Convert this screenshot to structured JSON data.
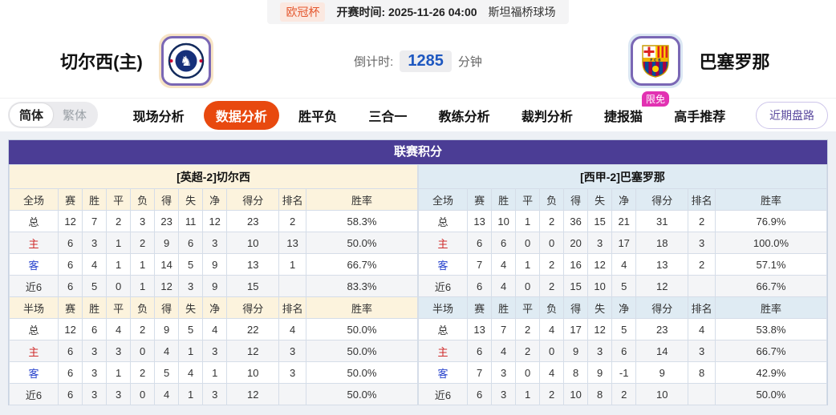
{
  "top_bar": {
    "league": "欧冠杯",
    "kickoff": "开赛时间: 2025-11-26 04:00",
    "venue": "斯坦福桥球场"
  },
  "header": {
    "home_name": "切尔西(主)",
    "away_name": "巴塞罗那",
    "countdown_label": "倒计时:",
    "countdown_value": "1285",
    "countdown_unit": "分钟"
  },
  "nav": {
    "lang": [
      {
        "name": "simplified",
        "label": "简体",
        "active": true
      },
      {
        "name": "traditional",
        "label": "繁体",
        "active": false
      }
    ],
    "tabs": [
      {
        "name": "live-analysis",
        "label": "现场分析",
        "active": false
      },
      {
        "name": "data-analysis",
        "label": "数据分析",
        "active": true
      },
      {
        "name": "win-draw-loss",
        "label": "胜平负",
        "active": false
      },
      {
        "name": "three-in-one",
        "label": "三合一",
        "active": false
      },
      {
        "name": "coach-analysis",
        "label": "教练分析",
        "active": false
      },
      {
        "name": "referee-analysis",
        "label": "裁判分析",
        "active": false
      },
      {
        "name": "jiebao-cat",
        "label": "捷报猫",
        "active": false,
        "badge": "限免"
      },
      {
        "name": "expert-picks",
        "label": "高手推荐",
        "active": false
      }
    ],
    "right_button": "近期盘路"
  },
  "table": {
    "title": "联赛积分",
    "home": {
      "header": "[英超-2]切尔西",
      "full_header": [
        "全场",
        "赛",
        "胜",
        "平",
        "负",
        "得",
        "失",
        "净",
        "得分",
        "排名",
        "胜率"
      ],
      "full_rows": [
        [
          "总",
          "12",
          "7",
          "2",
          "3",
          "23",
          "11",
          "12",
          "23",
          "2",
          "58.3%"
        ],
        [
          "主",
          "6",
          "3",
          "1",
          "2",
          "9",
          "6",
          "3",
          "10",
          "13",
          "50.0%"
        ],
        [
          "客",
          "6",
          "4",
          "1",
          "1",
          "14",
          "5",
          "9",
          "13",
          "1",
          "66.7%"
        ],
        [
          "近6",
          "6",
          "5",
          "0",
          "1",
          "12",
          "3",
          "9",
          "15",
          "",
          "83.3%"
        ]
      ],
      "half_header": [
        "半场",
        "赛",
        "胜",
        "平",
        "负",
        "得",
        "失",
        "净",
        "得分",
        "排名",
        "胜率"
      ],
      "half_rows": [
        [
          "总",
          "12",
          "6",
          "4",
          "2",
          "9",
          "5",
          "4",
          "22",
          "4",
          "50.0%"
        ],
        [
          "主",
          "6",
          "3",
          "3",
          "0",
          "4",
          "1",
          "3",
          "12",
          "3",
          "50.0%"
        ],
        [
          "客",
          "6",
          "3",
          "1",
          "2",
          "5",
          "4",
          "1",
          "10",
          "3",
          "50.0%"
        ],
        [
          "近6",
          "6",
          "3",
          "3",
          "0",
          "4",
          "1",
          "3",
          "12",
          "",
          "50.0%"
        ]
      ]
    },
    "away": {
      "header": "[西甲-2]巴塞罗那",
      "full_header": [
        "全场",
        "赛",
        "胜",
        "平",
        "负",
        "得",
        "失",
        "净",
        "得分",
        "排名",
        "胜率"
      ],
      "full_rows": [
        [
          "总",
          "13",
          "10",
          "1",
          "2",
          "36",
          "15",
          "21",
          "31",
          "2",
          "76.9%"
        ],
        [
          "主",
          "6",
          "6",
          "0",
          "0",
          "20",
          "3",
          "17",
          "18",
          "3",
          "100.0%"
        ],
        [
          "客",
          "7",
          "4",
          "1",
          "2",
          "16",
          "12",
          "4",
          "13",
          "2",
          "57.1%"
        ],
        [
          "近6",
          "6",
          "4",
          "0",
          "2",
          "15",
          "10",
          "5",
          "12",
          "",
          "66.7%"
        ]
      ],
      "half_header": [
        "半场",
        "赛",
        "胜",
        "平",
        "负",
        "得",
        "失",
        "净",
        "得分",
        "排名",
        "胜率"
      ],
      "half_rows": [
        [
          "总",
          "13",
          "7",
          "2",
          "4",
          "17",
          "12",
          "5",
          "23",
          "4",
          "53.8%"
        ],
        [
          "主",
          "6",
          "4",
          "2",
          "0",
          "9",
          "3",
          "6",
          "14",
          "3",
          "66.7%"
        ],
        [
          "客",
          "7",
          "3",
          "0",
          "4",
          "8",
          "9",
          "-1",
          "9",
          "8",
          "42.9%"
        ],
        [
          "近6",
          "6",
          "3",
          "1",
          "2",
          "10",
          "8",
          "2",
          "10",
          "",
          "50.0%"
        ]
      ]
    }
  },
  "colors": {
    "accent_orange": "#e8490f",
    "title_purple": "#4b3d95",
    "badge_pink": "#e232b2",
    "home_tint": "#fcf3dd",
    "away_tint": "#dfebf3",
    "home_label_red": "#cf2a2a",
    "away_label_blue": "#2843cd",
    "countdown_blue": "#1d57c0"
  }
}
